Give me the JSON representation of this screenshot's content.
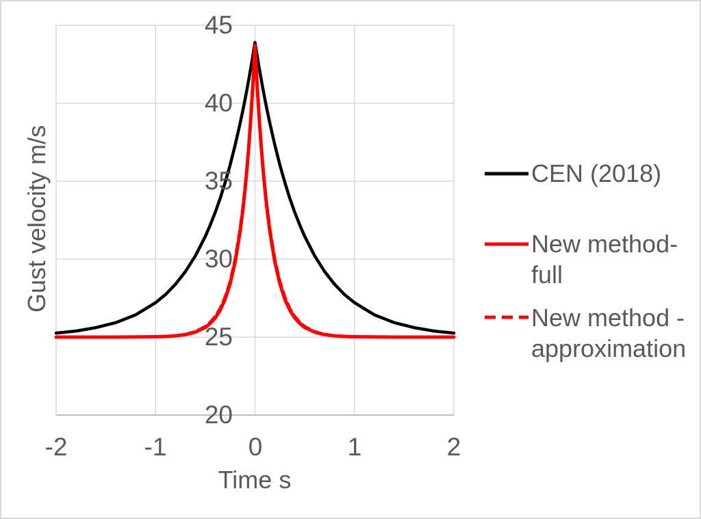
{
  "chart_data": {
    "type": "line",
    "title": "",
    "xlabel": "Time s",
    "ylabel": "Gust velocity m/s",
    "xlim": [
      -2,
      2
    ],
    "ylim": [
      20,
      45
    ],
    "xticks": [
      -2,
      -1,
      0,
      1,
      2
    ],
    "yticks": [
      20,
      25,
      30,
      35,
      40,
      45
    ],
    "x_tick_labels": [
      "-2",
      "-1",
      "0",
      "1",
      "2"
    ],
    "y_tick_labels": [
      "45",
      "40",
      "35",
      "30",
      "25",
      "20"
    ],
    "grid": true,
    "legend_position": "right",
    "colors": {
      "text": "#595959",
      "gridline": "#d9d9d9",
      "axis_line": "#bfbfbf",
      "border": "#d9d9d9",
      "background": "#ffffff"
    },
    "x": [
      -2,
      -1.8,
      -1.6,
      -1.4,
      -1.2,
      -1,
      -0.9,
      -0.8,
      -0.7,
      -0.6,
      -0.5,
      -0.45,
      -0.4,
      -0.35,
      -0.3,
      -0.25,
      -0.2,
      -0.15,
      -0.12,
      -0.1,
      -0.08,
      -0.06,
      -0.05,
      -0.04,
      -0.03,
      -0.02,
      -0.01,
      0,
      0.01,
      0.02,
      0.03,
      0.04,
      0.05,
      0.06,
      0.08,
      0.1,
      0.12,
      0.15,
      0.2,
      0.25,
      0.3,
      0.35,
      0.4,
      0.45,
      0.5,
      0.6,
      0.7,
      0.8,
      0.9,
      1,
      1.2,
      1.4,
      1.6,
      1.8,
      2
    ],
    "series": [
      {
        "name": "CEN (2018)",
        "color": "#000000",
        "style": "solid",
        "stroke_width": 4.5,
        "peak": 43.9,
        "baseline": 25,
        "values": [
          25.26,
          25.39,
          25.61,
          25.93,
          26.43,
          27.21,
          27.73,
          28.39,
          29.2,
          30.21,
          31.46,
          32.19,
          33.0,
          33.91,
          34.92,
          36.05,
          37.3,
          38.7,
          39.61,
          40.25,
          40.92,
          41.62,
          41.98,
          42.34,
          42.72,
          43.11,
          43.5,
          43.9,
          43.5,
          43.11,
          42.72,
          42.34,
          41.98,
          41.62,
          40.92,
          40.25,
          39.61,
          38.7,
          37.3,
          36.05,
          34.92,
          33.91,
          33.0,
          32.19,
          31.46,
          30.21,
          29.2,
          28.39,
          27.73,
          27.21,
          26.43,
          25.93,
          25.61,
          25.39,
          25.26
        ]
      },
      {
        "name": "New method-full",
        "color": "#ff0000",
        "style": "solid",
        "stroke_width": 5,
        "peak": 43.7,
        "baseline": 25,
        "values": [
          25.0,
          25.0,
          25.0,
          25.0,
          25.01,
          25.02,
          25.04,
          25.08,
          25.16,
          25.32,
          25.62,
          25.88,
          26.23,
          26.73,
          27.43,
          28.42,
          29.8,
          31.74,
          33.27,
          34.47,
          35.85,
          37.43,
          38.31,
          39.24,
          40.25,
          41.32,
          42.47,
          43.7,
          42.47,
          41.32,
          40.25,
          39.24,
          38.31,
          37.43,
          35.85,
          34.47,
          33.27,
          31.74,
          29.8,
          28.42,
          27.43,
          26.73,
          26.23,
          25.88,
          25.62,
          25.32,
          25.16,
          25.08,
          25.04,
          25.02,
          25.01,
          25.0,
          25.0,
          25.0,
          25.0
        ]
      },
      {
        "name": "New method - approximation",
        "color": "#ff0000",
        "style": "dashed",
        "stroke_width": 4.5,
        "peak": 43.7,
        "baseline": 25,
        "values": [
          25.0,
          25.0,
          25.0,
          25.0,
          25.01,
          25.02,
          25.05,
          25.09,
          25.18,
          25.35,
          25.68,
          25.95,
          26.32,
          26.84,
          27.57,
          28.57,
          29.97,
          31.92,
          33.44,
          34.64,
          36.01,
          37.57,
          38.43,
          39.35,
          40.33,
          41.38,
          42.5,
          43.7,
          42.5,
          41.38,
          40.33,
          39.35,
          38.43,
          37.57,
          36.01,
          34.64,
          33.44,
          31.92,
          29.97,
          28.57,
          27.57,
          26.84,
          26.32,
          25.95,
          25.68,
          25.35,
          25.18,
          25.09,
          25.05,
          25.02,
          25.01,
          25.0,
          25.0,
          25.0,
          25.0
        ]
      }
    ]
  }
}
